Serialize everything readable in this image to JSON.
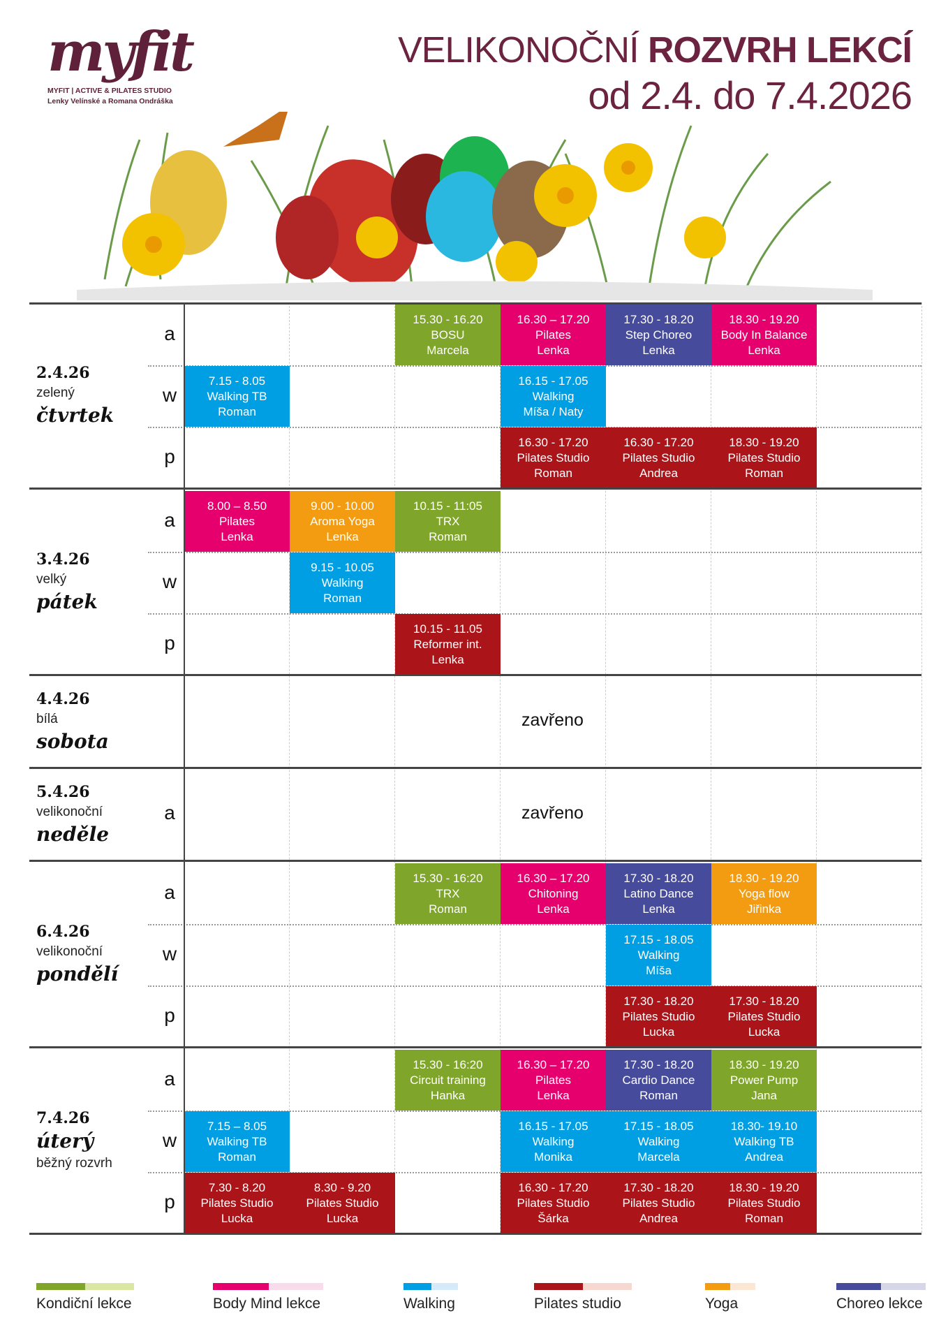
{
  "logo": {
    "mark": "myfit",
    "line1": "MYFIT | ACTIVE & PILATES STUDIO",
    "line2": "Lenky Velínské a Romana Ondráška"
  },
  "header": {
    "title_light": "VELIKONOČNÍ",
    "title_bold": "ROZVRH LEKCÍ",
    "dates": "od 2.4. do 7.4.2026"
  },
  "colors": {
    "kondicni": "#7fa62a",
    "bodymind": "#e6006e",
    "walking": "#009fe3",
    "pilates": "#ab1419",
    "yoga": "#f39c12",
    "choreo": "#474b9b"
  },
  "days": [
    {
      "labels": [
        {
          "t": "2.4.26",
          "s": "date"
        },
        {
          "t": "zelený",
          "s": "sm"
        },
        {
          "t": "čtvrtek",
          "s": "big"
        }
      ],
      "rows": [
        {
          "letter": "a",
          "cells": [
            null,
            null,
            {
              "time": "15.30 - 16.20",
              "name": "BOSU",
              "who": "Marcela",
              "type": "kondicni"
            },
            {
              "time": "16.30 – 17.20",
              "name": "Pilates",
              "who": "Lenka",
              "type": "bodymind"
            },
            {
              "time": "17.30 - 18.20",
              "name": "Step Choreo",
              "who": "Lenka",
              "type": "choreo"
            },
            {
              "time": "18.30 - 19.20",
              "name": "Body In Balance",
              "who": "Lenka",
              "type": "bodymind"
            },
            null
          ]
        },
        {
          "letter": "w",
          "cells": [
            {
              "time": "7.15 - 8.05",
              "name": "Walking TB",
              "who": "Roman",
              "type": "walking"
            },
            null,
            null,
            {
              "time": "16.15 - 17.05",
              "name": "Walking",
              "who": "Míša / Naty",
              "type": "walking"
            },
            null,
            null,
            null
          ]
        },
        {
          "letter": "p",
          "cells": [
            null,
            null,
            null,
            {
              "time": "16.30 - 17.20",
              "name": "Pilates Studio",
              "who": "Roman",
              "type": "pilates"
            },
            {
              "time": "16.30 - 17.20",
              "name": "Pilates Studio",
              "who": "Andrea",
              "type": "pilates"
            },
            {
              "time": "18.30 - 19.20",
              "name": "Pilates Studio",
              "who": "Roman",
              "type": "pilates"
            },
            null
          ]
        }
      ]
    },
    {
      "labels": [
        {
          "t": "3.4.26",
          "s": "date"
        },
        {
          "t": "velký",
          "s": "sm"
        },
        {
          "t": "pátek",
          "s": "big"
        }
      ],
      "rows": [
        {
          "letter": "a",
          "cells": [
            {
              "time": "8.00 – 8.50",
              "name": "Pilates",
              "who": "Lenka",
              "type": "bodymind"
            },
            {
              "time": "9.00 - 10.00",
              "name": "Aroma Yoga",
              "who": "Lenka",
              "type": "yoga"
            },
            {
              "time": "10.15 - 11:05",
              "name": "TRX",
              "who": "Roman",
              "type": "kondicni"
            },
            null,
            null,
            null,
            null
          ]
        },
        {
          "letter": "w",
          "cells": [
            null,
            {
              "time": "9.15 - 10.05",
              "name": "Walking",
              "who": "Roman",
              "type": "walking"
            },
            null,
            null,
            null,
            null,
            null
          ]
        },
        {
          "letter": "p",
          "cells": [
            null,
            null,
            {
              "time": "10.15 - 11.05",
              "name": "Reformer int.",
              "who": "Lenka",
              "type": "pilates"
            },
            null,
            null,
            null,
            null
          ]
        }
      ]
    },
    {
      "labels": [
        {
          "t": "4.4.26",
          "s": "date"
        },
        {
          "t": "bílá",
          "s": "sm"
        },
        {
          "t": "sobota",
          "s": "big"
        }
      ],
      "closed": "zavřeno",
      "letter": ""
    },
    {
      "labels": [
        {
          "t": "5.4.26",
          "s": "date"
        },
        {
          "t": "velikonoční",
          "s": "sm"
        },
        {
          "t": "neděle",
          "s": "big"
        }
      ],
      "closed": "zavřeno",
      "letter": "a"
    },
    {
      "labels": [
        {
          "t": "6.4.26",
          "s": "date"
        },
        {
          "t": "velikonoční",
          "s": "sm"
        },
        {
          "t": "pondělí",
          "s": "big"
        }
      ],
      "rows": [
        {
          "letter": "a",
          "cells": [
            null,
            null,
            {
              "time": "15.30 - 16:20",
              "name": "TRX",
              "who": "Roman",
              "type": "kondicni"
            },
            {
              "time": "16.30 – 17.20",
              "name": "Chitoning",
              "who": "Lenka",
              "type": "bodymind"
            },
            {
              "time": "17.30 - 18.20",
              "name": "Latino Dance",
              "who": "Lenka",
              "type": "choreo"
            },
            {
              "time": "18.30 - 19.20",
              "name": "Yoga flow",
              "who": "Jiřinka",
              "type": "yoga"
            },
            null
          ]
        },
        {
          "letter": "w",
          "cells": [
            null,
            null,
            null,
            null,
            {
              "time": "17.15 - 18.05",
              "name": "Walking",
              "who": "Míša",
              "type": "walking"
            },
            null,
            null
          ]
        },
        {
          "letter": "p",
          "cells": [
            null,
            null,
            null,
            null,
            {
              "time": "17.30 - 18.20",
              "name": "Pilates Studio",
              "who": "Lucka",
              "type": "pilates"
            },
            {
              "time": "17.30 - 18.20",
              "name": "Pilates Studio",
              "who": "Lucka",
              "type": "pilates"
            },
            null
          ]
        }
      ]
    },
    {
      "labels": [
        {
          "t": "7.4.26",
          "s": "date"
        },
        {
          "t": "úterý",
          "s": "big"
        },
        {
          "t": "běžný rozvrh",
          "s": "sm"
        }
      ],
      "rows": [
        {
          "letter": "a",
          "cells": [
            null,
            null,
            {
              "time": "15.30 - 16:20",
              "name": "Circuit training",
              "who": "Hanka",
              "type": "kondicni"
            },
            {
              "time": "16.30 – 17.20",
              "name": "Pilates",
              "who": "Lenka",
              "type": "bodymind"
            },
            {
              "time": "17.30 - 18.20",
              "name": "Cardio Dance",
              "who": "Roman",
              "type": "choreo"
            },
            {
              "time": "18.30 - 19.20",
              "name": "Power Pump",
              "who": "Jana",
              "type": "kondicni"
            },
            null
          ]
        },
        {
          "letter": "w",
          "cells": [
            {
              "time": "7.15 – 8.05",
              "name": "Walking TB",
              "who": "Roman",
              "type": "walking"
            },
            null,
            null,
            {
              "time": "16.15 - 17.05",
              "name": "Walking",
              "who": "Monika",
              "type": "walking"
            },
            {
              "time": "17.15 - 18.05",
              "name": "Walking",
              "who": "Marcela",
              "type": "walking"
            },
            {
              "time": "18.30- 19.10",
              "name": "Walking TB",
              "who": "Andrea",
              "type": "walking"
            },
            null
          ]
        },
        {
          "letter": "p",
          "cells": [
            {
              "time": "7.30 - 8.20",
              "name": "Pilates Studio",
              "who": "Lucka",
              "type": "pilates"
            },
            {
              "time": "8.30 - 9.20",
              "name": "Pilates Studio",
              "who": "Lucka",
              "type": "pilates"
            },
            null,
            {
              "time": "16.30 - 17.20",
              "name": "Pilates Studio",
              "who": "Šárka",
              "type": "pilates"
            },
            {
              "time": "17.30 - 18.20",
              "name": "Pilates Studio",
              "who": "Andrea",
              "type": "pilates"
            },
            {
              "time": "18.30 - 19.20",
              "name": "Pilates Studio",
              "who": "Roman",
              "type": "pilates"
            },
            null
          ]
        }
      ]
    }
  ],
  "legend": [
    {
      "label": "Kondiční lekce",
      "dark": "#7fa62a",
      "light": "#d9e6a4"
    },
    {
      "label": "Body Mind lekce",
      "dark": "#e6006e",
      "light": "#f9dceb"
    },
    {
      "label": "Walking",
      "dark": "#009fe3",
      "light": "#d6ebfa"
    },
    {
      "label": "Pilates studio",
      "dark": "#ab1419",
      "light": "#f7d8d0"
    },
    {
      "label": "Yoga",
      "dark": "#f39c12",
      "light": "#fbe7d2"
    },
    {
      "label": "Choreo lekce",
      "dark": "#474b9b",
      "light": "#d5d7e8"
    }
  ]
}
